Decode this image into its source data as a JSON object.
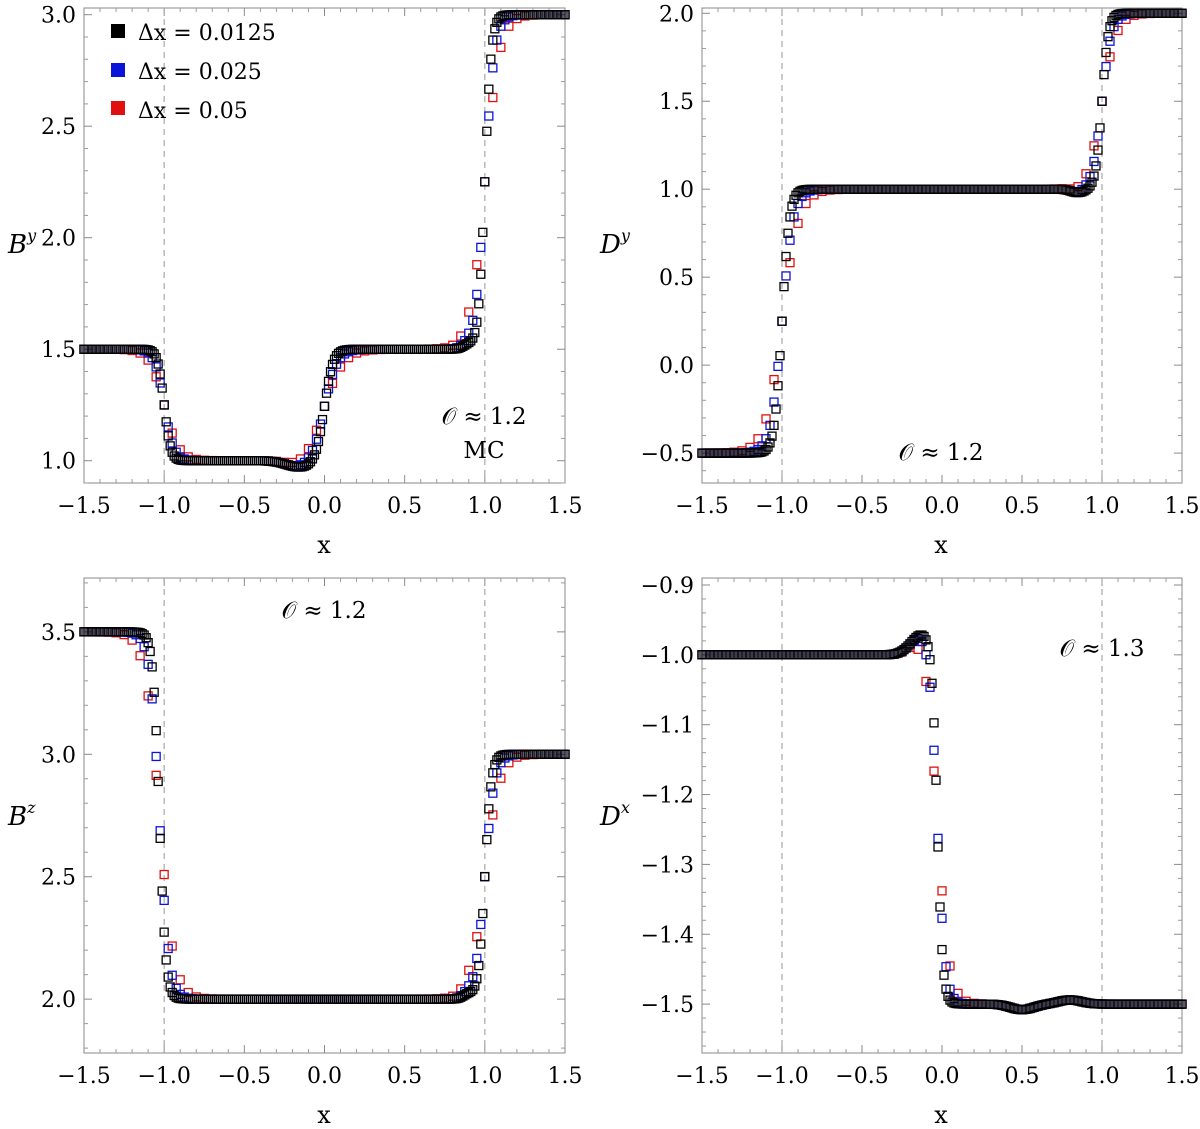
{
  "colors": {
    "black": "#000000",
    "blue": "#0a14d8",
    "red": "#e01010"
  },
  "legend": [
    {
      "label": "Δx = 0.0125",
      "color": "#000000"
    },
    {
      "label": "Δx = 0.025",
      "color": "#0a14d8"
    },
    {
      "label": "Δx = 0.05",
      "color": "#e01010"
    }
  ],
  "chart_data": [
    {
      "id": "By",
      "type": "scatter",
      "title": "",
      "ylabel_base": "B",
      "ylabel_sup": "y",
      "xlabel": "x",
      "xlim": [
        -1.5,
        1.5
      ],
      "ylim": [
        0.9,
        3.03
      ],
      "xticks": [
        -1.5,
        -1.0,
        -0.5,
        0.0,
        0.5,
        1.0,
        1.5
      ],
      "xtick_labels": [
        "−1.5",
        "−1.0",
        "−0.5",
        "0.0",
        "0.5",
        "1.0",
        "1.5"
      ],
      "yticks": [
        1.0,
        1.5,
        2.0,
        2.5,
        3.0
      ],
      "ytick_labels": [
        "1.0",
        "1.5",
        "2.0",
        "2.5",
        "3.0"
      ],
      "vlines": [
        -1.0,
        1.0
      ],
      "annotation_lines": [
        "𝒪 ≈ 1.2",
        "MC"
      ],
      "legend_position": "top-left",
      "profile": {
        "base": 1.5,
        "steps": [
          [
            -1.0,
            0.03,
            -0.5
          ],
          [
            0.0,
            0.04,
            0.5
          ],
          [
            1.0,
            0.03,
            1.5
          ]
        ],
        "bumps": [
          [
            -0.15,
            0.12,
            -0.03
          ],
          [
            0.9,
            0.05,
            0.02
          ]
        ]
      },
      "series": [
        {
          "name": "Δx = 0.0125",
          "color": "#000000",
          "dx": 0.0125,
          "spread": 0.02
        },
        {
          "name": "Δx = 0.025",
          "color": "#0a14d8",
          "dx": 0.025,
          "spread": 0.03
        },
        {
          "name": "Δx = 0.05",
          "color": "#e01010",
          "dx": 0.05,
          "spread": 0.045
        }
      ]
    },
    {
      "id": "Dy",
      "type": "scatter",
      "title": "",
      "ylabel_base": "D",
      "ylabel_sup": "y",
      "xlabel": "x",
      "xlim": [
        -1.5,
        1.5
      ],
      "ylim": [
        -0.67,
        2.03
      ],
      "xticks": [
        -1.5,
        -1.0,
        -0.5,
        0.0,
        0.5,
        1.0,
        1.5
      ],
      "xtick_labels": [
        "−1.5",
        "−1.0",
        "−0.5",
        "0.0",
        "0.5",
        "1.0",
        "1.5"
      ],
      "yticks": [
        -0.5,
        0.0,
        0.5,
        1.0,
        1.5,
        2.0
      ],
      "ytick_labels": [
        "−0.5",
        "0.0",
        "0.5",
        "1.0",
        "1.5",
        "2.0"
      ],
      "vlines": [
        -1.0,
        1.0
      ],
      "annotation_lines": [
        "𝒪 ≈ 1.2"
      ],
      "profile": {
        "base": -0.5,
        "steps": [
          [
            -1.0,
            0.035,
            1.5
          ],
          [
            1.0,
            0.03,
            1.0
          ]
        ],
        "bumps": [
          [
            0.85,
            0.06,
            -0.02
          ]
        ]
      },
      "series": [
        {
          "name": "Δx = 0.0125",
          "color": "#000000",
          "dx": 0.0125,
          "spread": 0.02
        },
        {
          "name": "Δx = 0.025",
          "color": "#0a14d8",
          "dx": 0.025,
          "spread": 0.03
        },
        {
          "name": "Δx = 0.05",
          "color": "#e01010",
          "dx": 0.05,
          "spread": 0.045
        }
      ]
    },
    {
      "id": "Bz",
      "type": "scatter",
      "title": "",
      "ylabel_base": "B",
      "ylabel_sup": "z",
      "xlabel": "x",
      "xlim": [
        -1.5,
        1.5
      ],
      "ylim": [
        1.78,
        3.72
      ],
      "xticks": [
        -1.5,
        -1.0,
        -0.5,
        0.0,
        0.5,
        1.0,
        1.5
      ],
      "xtick_labels": [
        "−1.5",
        "−1.0",
        "−0.5",
        "0.0",
        "0.5",
        "1.0",
        "1.5"
      ],
      "yticks": [
        2.0,
        2.5,
        3.0,
        3.5
      ],
      "ytick_labels": [
        "2.0",
        "2.5",
        "3.0",
        "3.5"
      ],
      "vlines": [
        -1.0,
        1.0
      ],
      "annotation_lines": [
        "𝒪 ≈ 1.2"
      ],
      "profile": {
        "base": 3.5,
        "steps": [
          [
            -1.03,
            0.03,
            -1.5
          ],
          [
            1.0,
            0.03,
            1.0
          ]
        ],
        "bumps": [
          [
            0.9,
            0.05,
            0.02
          ]
        ]
      },
      "series": [
        {
          "name": "Δx = 0.0125",
          "color": "#000000",
          "dx": 0.0125,
          "spread": 0.02
        },
        {
          "name": "Δx = 0.025",
          "color": "#0a14d8",
          "dx": 0.025,
          "spread": 0.03
        },
        {
          "name": "Δx = 0.05",
          "color": "#e01010",
          "dx": 0.05,
          "spread": 0.045
        }
      ]
    },
    {
      "id": "Dx",
      "type": "scatter",
      "title": "",
      "ylabel_base": "D",
      "ylabel_sup": "x",
      "xlabel": "x",
      "xlim": [
        -1.5,
        1.5
      ],
      "ylim": [
        -1.57,
        -0.89
      ],
      "xticks": [
        -1.5,
        -1.0,
        -0.5,
        0.0,
        0.5,
        1.0,
        1.5
      ],
      "xtick_labels": [
        "−1.5",
        "−1.0",
        "−0.5",
        "0.0",
        "0.5",
        "1.0",
        "1.5"
      ],
      "yticks": [
        -1.5,
        -1.4,
        -1.3,
        -1.2,
        -1.1,
        -1.0,
        -0.9
      ],
      "ytick_labels": [
        "−1.5",
        "−1.4",
        "−1.3",
        "−1.2",
        "−1.1",
        "−1.0",
        "−0.9"
      ],
      "vlines": [
        -1.0,
        1.0
      ],
      "annotation_lines": [
        "𝒪 ≈ 1.3"
      ],
      "profile": {
        "base": -1.0,
        "steps": [
          [
            -0.03,
            0.025,
            -0.5
          ]
        ],
        "bumps": [
          [
            -0.12,
            0.1,
            0.03
          ],
          [
            0.5,
            0.1,
            -0.008
          ],
          [
            0.8,
            0.1,
            0.006
          ]
        ]
      },
      "series": [
        {
          "name": "Δx = 0.0125",
          "color": "#000000",
          "dx": 0.0125,
          "spread": 0.02
        },
        {
          "name": "Δx = 0.025",
          "color": "#0a14d8",
          "dx": 0.025,
          "spread": 0.03
        },
        {
          "name": "Δx = 0.05",
          "color": "#e01010",
          "dx": 0.05,
          "spread": 0.045
        }
      ]
    }
  ]
}
